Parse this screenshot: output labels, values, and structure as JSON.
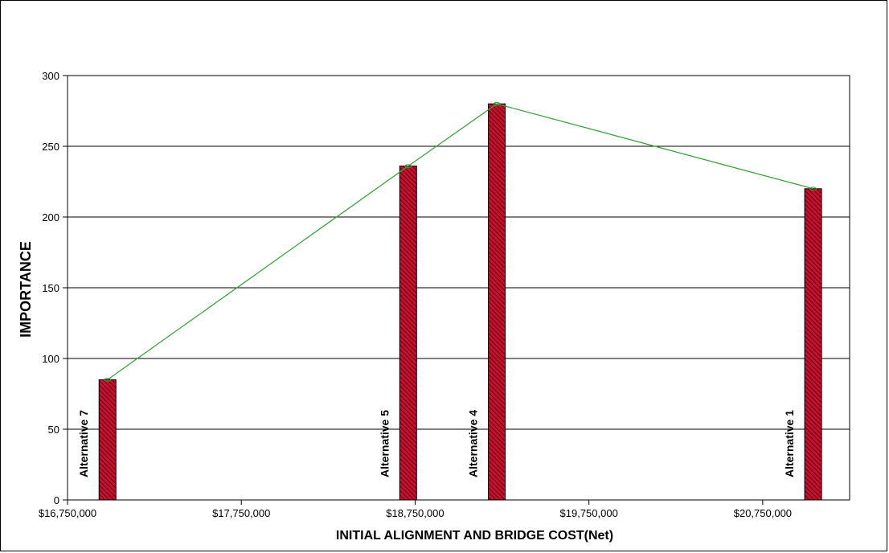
{
  "chart_data": {
    "type": "bar",
    "title": "",
    "xlabel": "INITIAL ALIGNMENT AND BRIDGE COST(Net)",
    "ylabel": "IMPORTANCE",
    "xlim": [
      16750000,
      21250000
    ],
    "ylim": [
      0,
      300
    ],
    "x_ticks": [
      16750000,
      17750000,
      18750000,
      19750000,
      20750000
    ],
    "x_tick_labels": [
      "$16,750,000",
      "$17,750,000",
      "$18,750,000",
      "$19,750,000",
      "$20,750,000"
    ],
    "y_ticks": [
      0,
      50,
      100,
      150,
      200,
      250,
      300
    ],
    "y_tick_labels": [
      "0",
      "50",
      "100",
      "150",
      "200",
      "250",
      "300"
    ],
    "grid": "horizontal",
    "legend": "none",
    "bars": [
      {
        "label": "Alternative 7",
        "x": 16980000,
        "value": 85
      },
      {
        "label": "Alternative 5",
        "x": 18710000,
        "value": 236
      },
      {
        "label": "Alternative 4",
        "x": 19220000,
        "value": 280
      },
      {
        "label": "Alternative 1",
        "x": 21040000,
        "value": 220
      }
    ],
    "line_series": {
      "x": [
        16980000,
        18710000,
        19220000,
        21040000
      ],
      "values": [
        85,
        236,
        280,
        220
      ]
    },
    "colors": {
      "bar_fill": "#c8102e",
      "bar_hatch": "#3a0a0a",
      "line": "#3aa33a",
      "grid": "#000000"
    }
  }
}
